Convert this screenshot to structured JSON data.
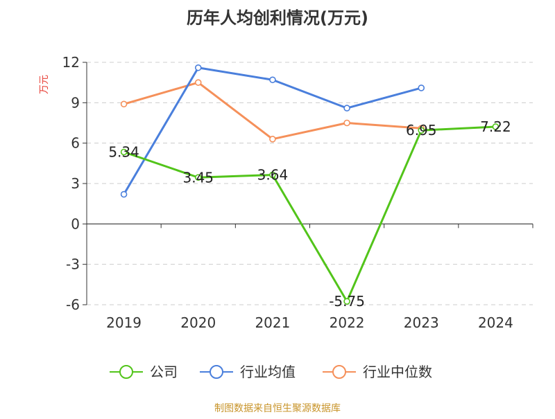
{
  "chart_data": {
    "type": "line",
    "title": "历年人均创利情况(万元)",
    "ylabel": "万元",
    "xlabel": "",
    "categories": [
      "2019",
      "2020",
      "2021",
      "2022",
      "2023",
      "2024"
    ],
    "ylim": [
      -6,
      12
    ],
    "yticks": [
      12,
      9,
      6,
      3,
      0,
      -3,
      -6
    ],
    "grid": true,
    "legend_position": "bottom",
    "series": [
      {
        "name": "公司",
        "color": "#52c41a",
        "values": [
          5.34,
          3.45,
          3.64,
          -5.75,
          6.95,
          7.22
        ],
        "labels": [
          "5.34",
          "3.45",
          "3.64",
          "-5.75",
          "6.95",
          "7.22"
        ],
        "show_labels": true
      },
      {
        "name": "行业均值",
        "color": "#4a7fdc",
        "values": [
          2.2,
          11.6,
          10.7,
          8.6,
          10.1,
          null
        ],
        "show_labels": false
      },
      {
        "name": "行业中位数",
        "color": "#f5905a",
        "values": [
          8.9,
          10.5,
          6.3,
          7.5,
          7.1,
          null
        ],
        "show_labels": false
      }
    ]
  },
  "footer": {
    "source": "制图数据来自恒生聚源数据库"
  }
}
